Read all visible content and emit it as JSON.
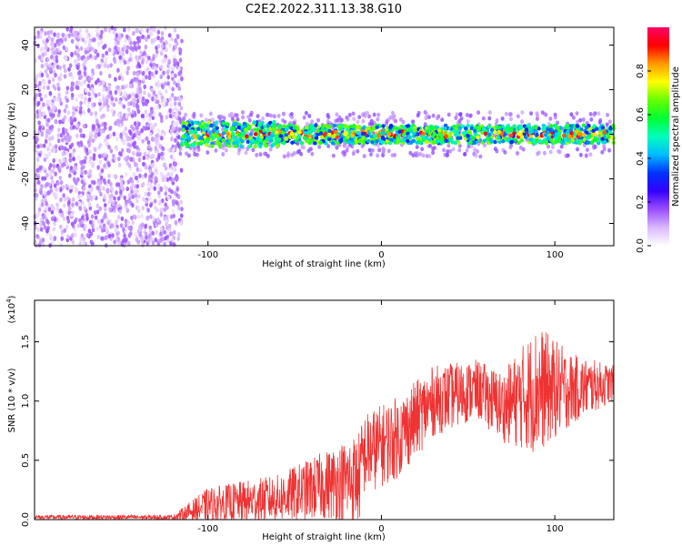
{
  "figure_title": "C2E2.2022.311.13.38.G10",
  "chart_data": [
    {
      "type": "heatmap",
      "xlabel": "Height of straight line (km)",
      "ylabel": "Frequency (Hz)",
      "xlim": [
        -200,
        134
      ],
      "ylim": [
        -50,
        48
      ],
      "x_ticks": [
        -100,
        0,
        100
      ],
      "y_ticks": [
        -40,
        -20,
        0,
        20,
        40
      ],
      "colorbar": {
        "label": "Normalized spectral amplitude",
        "range": [
          0.0,
          1.0
        ],
        "ticks": [
          "0.0",
          "0.2",
          "0.4",
          "0.6",
          "0.8"
        ],
        "colors": [
          "#ffffff",
          "#d9b8ff",
          "#9a4dff",
          "#3300ff",
          "#0033ff",
          "#00bbff",
          "#00ffbb",
          "#00ff33",
          "#66ff00",
          "#ffff00",
          "#ff9900",
          "#ff0000",
          "#ff0066"
        ]
      },
      "regions": [
        {
          "name": "noise",
          "x_range": [
            -200,
            -115
          ],
          "freq_range": [
            -50,
            48
          ],
          "amplitude": 0.1
        },
        {
          "name": "signal_band",
          "x_range": [
            -115,
            134
          ],
          "freq_center": 0,
          "freq_halfwidth": 4,
          "amplitude_range": [
            0.3,
            0.9
          ]
        }
      ]
    },
    {
      "type": "line",
      "xlabel": "Height of straight line (km)",
      "ylabel": "SNR (10 * v/v)",
      "y_scale_label": "(x10",
      "y_scale_exp": "4",
      "xlim": [
        -200,
        134
      ],
      "ylim": [
        0,
        1.85
      ],
      "x_ticks": [
        -100,
        0,
        100
      ],
      "y_ticks": [
        "0.0",
        "0.5",
        "1.0",
        "1.5"
      ],
      "color": "#ee3333",
      "envelope": [
        {
          "x": -200,
          "mean": 0.02,
          "spread": 0.02
        },
        {
          "x": -120,
          "mean": 0.02,
          "spread": 0.02
        },
        {
          "x": -100,
          "mean": 0.12,
          "spread": 0.15
        },
        {
          "x": -60,
          "mean": 0.18,
          "spread": 0.2
        },
        {
          "x": -30,
          "mean": 0.3,
          "spread": 0.3
        },
        {
          "x": -13,
          "mean": 0.35,
          "spread": 0.4
        },
        {
          "x": -10,
          "mean": 0.55,
          "spread": 0.35
        },
        {
          "x": 10,
          "mean": 0.7,
          "spread": 0.35
        },
        {
          "x": 30,
          "mean": 1.0,
          "spread": 0.3
        },
        {
          "x": 55,
          "mean": 1.1,
          "spread": 0.25
        },
        {
          "x": 70,
          "mean": 0.95,
          "spread": 0.3
        },
        {
          "x": 90,
          "mean": 1.1,
          "spread": 0.55
        },
        {
          "x": 110,
          "mean": 1.1,
          "spread": 0.3
        },
        {
          "x": 134,
          "mean": 1.15,
          "spread": 0.15
        }
      ]
    }
  ]
}
